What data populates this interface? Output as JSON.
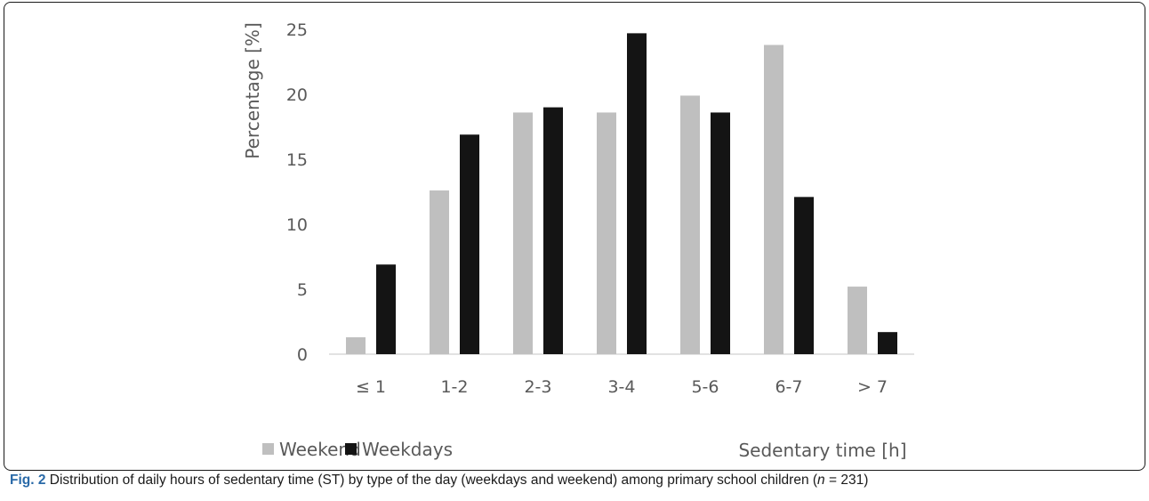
{
  "chart_data": {
    "type": "bar",
    "categories": [
      "≤ 1",
      "1-2",
      "2-3",
      "3-4",
      "5-6",
      "6-7",
      "> 7"
    ],
    "series": [
      {
        "name": "Weekend",
        "color": "#bfbfbf",
        "values": [
          1.3,
          12.6,
          18.6,
          18.6,
          19.9,
          23.8,
          5.2
        ]
      },
      {
        "name": "Weekdays",
        "color": "#141414",
        "values": [
          6.9,
          16.9,
          19.0,
          24.7,
          18.6,
          12.1,
          1.7
        ]
      }
    ],
    "yticks": [
      0,
      5,
      10,
      15,
      20,
      25
    ],
    "ylim": [
      0,
      25
    ],
    "ylabel": "Percentage [%]",
    "xlabel": "Sedentary time [h]",
    "legend_position": "bottom-left",
    "grid": false
  },
  "caption": {
    "label": "Fig. 2",
    "text_before_n": "Distribution of daily hours of sedentary time (ST) by type of the day (weekdays and weekend) among primary school children (",
    "n_symbol": "n",
    "text_after_n": " = 231)"
  }
}
